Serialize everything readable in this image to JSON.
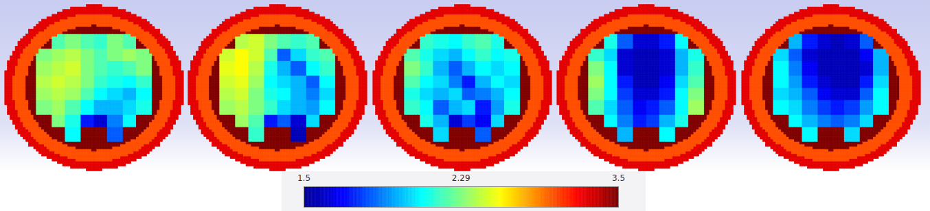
{
  "chart_data": {
    "type": "heatmap",
    "rings": [
      3.22,
      2.95,
      3.5
    ],
    "panels": [
      {
        "values": [
          [
            null,
            2.2,
            2.29,
            2.2,
            2.15,
            2.29,
            2.2,
            null
          ],
          [
            2.29,
            2.35,
            2.4,
            2.29,
            2.2,
            2.29,
            2.35,
            2.29
          ],
          [
            2.35,
            2.4,
            2.45,
            2.29,
            2.2,
            2.15,
            2.2,
            2.29
          ],
          [
            2.4,
            2.45,
            2.4,
            2.29,
            2.15,
            2.1,
            2.06,
            2.15
          ],
          [
            2.35,
            2.4,
            2.35,
            2.2,
            2.06,
            2.0,
            1.94,
            2.06
          ],
          [
            2.29,
            2.35,
            2.2,
            2.06,
            1.94,
            1.94,
            2.0,
            2.1
          ],
          [
            null,
            2.29,
            2.1,
            1.7,
            1.6,
            1.85,
            2.06,
            null
          ],
          [
            null,
            null,
            2.06,
            null,
            null,
            1.8,
            null,
            null
          ]
        ]
      },
      {
        "values": [
          [
            null,
            2.4,
            2.45,
            2.29,
            2.2,
            2.15,
            2.2,
            null
          ],
          [
            2.45,
            2.55,
            2.45,
            2.2,
            1.8,
            2.0,
            2.15,
            2.2
          ],
          [
            2.5,
            2.55,
            2.4,
            2.1,
            1.94,
            1.8,
            2.06,
            2.15
          ],
          [
            2.45,
            2.5,
            2.35,
            2.06,
            2.0,
            1.94,
            1.8,
            2.06
          ],
          [
            2.4,
            2.45,
            2.29,
            2.1,
            2.06,
            1.94,
            1.85,
            2.0
          ],
          [
            2.35,
            2.4,
            2.29,
            2.15,
            2.0,
            1.94,
            1.9,
            2.06
          ],
          [
            null,
            2.35,
            2.2,
            1.7,
            1.8,
            1.6,
            2.0,
            null
          ],
          [
            null,
            null,
            2.15,
            null,
            null,
            1.56,
            null,
            null
          ]
        ]
      },
      {
        "values": [
          [
            null,
            2.15,
            2.1,
            2.06,
            2.15,
            2.2,
            2.1,
            null
          ],
          [
            2.2,
            2.1,
            2.0,
            1.94,
            2.06,
            2.15,
            2.06,
            2.1
          ],
          [
            2.29,
            2.15,
            1.94,
            1.8,
            1.94,
            2.06,
            2.0,
            2.06
          ],
          [
            2.2,
            2.06,
            2.0,
            1.85,
            1.7,
            1.94,
            2.06,
            2.0
          ],
          [
            2.1,
            2.0,
            1.94,
            2.0,
            1.8,
            1.85,
            1.94,
            2.06
          ],
          [
            2.15,
            2.06,
            1.8,
            1.94,
            2.0,
            1.7,
            1.9,
            2.1
          ],
          [
            null,
            2.1,
            1.94,
            1.6,
            1.75,
            1.65,
            2.0,
            null
          ],
          [
            null,
            null,
            2.0,
            null,
            null,
            1.8,
            null,
            null
          ]
        ]
      },
      {
        "values": [
          [
            null,
            2.1,
            1.8,
            1.6,
            1.6,
            1.7,
            2.06,
            null
          ],
          [
            2.15,
            2.0,
            1.6,
            1.56,
            1.56,
            1.6,
            1.94,
            2.1
          ],
          [
            2.29,
            2.06,
            1.6,
            1.56,
            1.56,
            1.6,
            1.94,
            2.15
          ],
          [
            2.35,
            2.06,
            1.7,
            1.56,
            1.56,
            1.65,
            2.0,
            2.2
          ],
          [
            2.29,
            2.06,
            1.75,
            1.6,
            1.6,
            1.7,
            2.06,
            2.29
          ],
          [
            2.2,
            2.0,
            1.8,
            1.65,
            1.7,
            1.8,
            2.06,
            2.35
          ],
          [
            null,
            2.06,
            1.85,
            1.7,
            1.75,
            1.94,
            2.1,
            null
          ],
          [
            null,
            null,
            1.94,
            null,
            null,
            2.06,
            null,
            null
          ]
        ]
      },
      {
        "values": [
          [
            null,
            1.94,
            1.7,
            1.6,
            1.56,
            1.6,
            1.8,
            null
          ],
          [
            2.0,
            1.8,
            1.6,
            1.56,
            1.56,
            1.56,
            1.65,
            1.94
          ],
          [
            2.06,
            1.85,
            1.65,
            1.56,
            1.56,
            1.56,
            1.6,
            1.94
          ],
          [
            2.06,
            1.9,
            1.7,
            1.6,
            1.56,
            1.56,
            1.7,
            2.0
          ],
          [
            2.0,
            1.94,
            1.8,
            1.65,
            1.6,
            1.6,
            1.8,
            2.06
          ],
          [
            2.06,
            2.0,
            1.85,
            1.75,
            1.7,
            1.75,
            1.9,
            2.06
          ],
          [
            null,
            2.06,
            1.94,
            1.85,
            1.8,
            1.85,
            2.0,
            null
          ],
          [
            null,
            null,
            2.06,
            null,
            null,
            2.0,
            null,
            null
          ]
        ]
      }
    ],
    "colorbar": {
      "range": [
        1.5,
        3.5
      ],
      "ticks": [
        1.5,
        2.29,
        3.5
      ],
      "log": true
    }
  }
}
